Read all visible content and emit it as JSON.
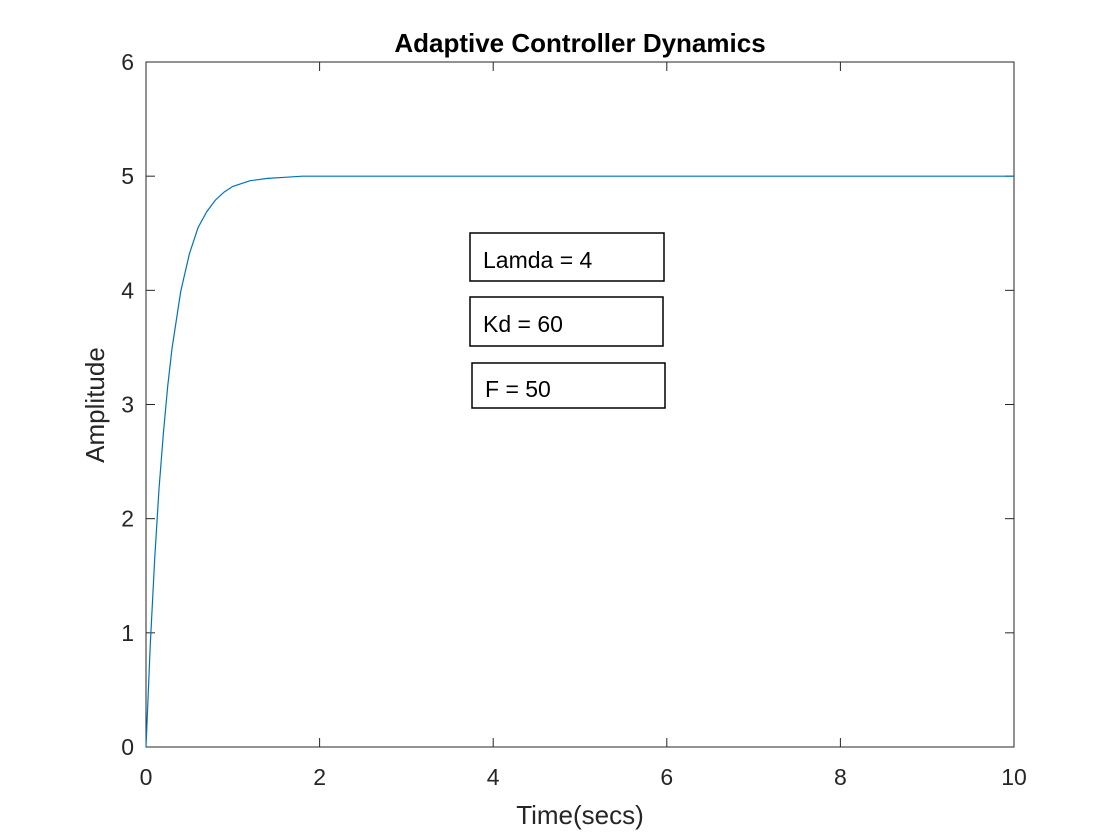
{
  "chart_data": {
    "type": "line",
    "title": "Adaptive Controller Dynamics",
    "xlabel": "Time(secs)",
    "ylabel": "Amplitude",
    "xlim": [
      0,
      10
    ],
    "ylim": [
      0,
      6
    ],
    "xticks": [
      0,
      2,
      4,
      6,
      8,
      10
    ],
    "yticks": [
      0,
      1,
      2,
      3,
      4,
      5,
      6
    ],
    "grid": false,
    "series": [
      {
        "color": "#0072bd",
        "x": [
          0,
          0.05,
          0.1,
          0.15,
          0.2,
          0.25,
          0.3,
          0.4,
          0.5,
          0.6,
          0.7,
          0.8,
          0.9,
          1.0,
          1.2,
          1.4,
          1.6,
          1.8,
          2.0,
          3,
          4,
          5,
          6,
          7,
          8,
          9,
          10
        ],
        "y": [
          0,
          0.9,
          1.65,
          2.26,
          2.75,
          3.16,
          3.49,
          3.99,
          4.32,
          4.55,
          4.69,
          4.79,
          4.86,
          4.91,
          4.96,
          4.98,
          4.99,
          5.0,
          5.0,
          5.0,
          5.0,
          5.0,
          5.0,
          5.0,
          5.0,
          5.0,
          5.0
        ]
      }
    ],
    "annotations": [
      {
        "text": "Lamda = 4"
      },
      {
        "text": "Kd = 60"
      },
      {
        "text": "F = 50"
      }
    ]
  }
}
